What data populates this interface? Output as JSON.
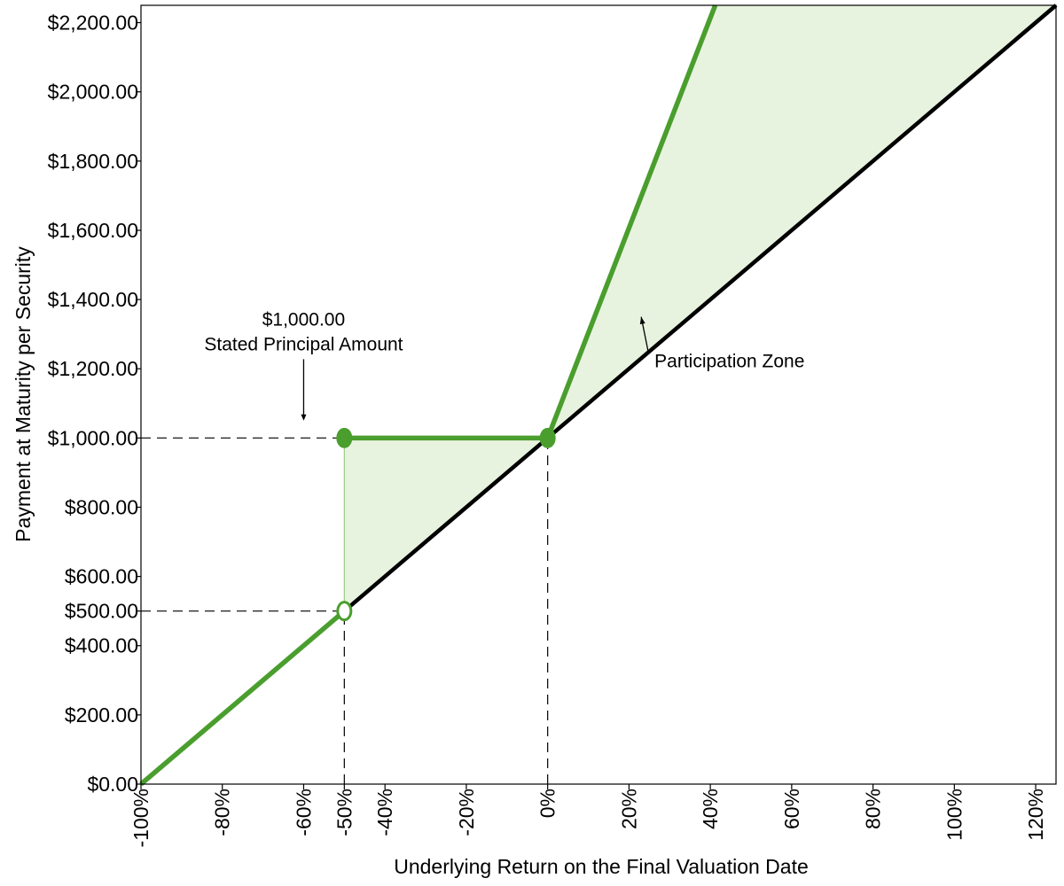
{
  "chart_data": {
    "type": "line",
    "xlabel": "Underlying Return on the Final Valuation Date",
    "ylabel": "Payment at Maturity per Security",
    "xlim": [
      -100,
      125
    ],
    "ylim": [
      0,
      2250
    ],
    "x_ticks": [
      {
        "value": -100,
        "label": "-100%"
      },
      {
        "value": -80,
        "label": "-80%"
      },
      {
        "value": -60,
        "label": "-60%"
      },
      {
        "value": -50,
        "label": "-50%"
      },
      {
        "value": -40,
        "label": "-40%"
      },
      {
        "value": -20,
        "label": "-20%"
      },
      {
        "value": 0,
        "label": "0%"
      },
      {
        "value": 20,
        "label": "20%"
      },
      {
        "value": 40,
        "label": "40%"
      },
      {
        "value": 60,
        "label": "60%"
      },
      {
        "value": 80,
        "label": "80%"
      },
      {
        "value": 100,
        "label": "100%"
      },
      {
        "value": 120,
        "label": "120%"
      }
    ],
    "y_ticks": [
      {
        "value": 0,
        "label": "$0.00"
      },
      {
        "value": 200,
        "label": "$200.00"
      },
      {
        "value": 400,
        "label": "$400.00"
      },
      {
        "value": 500,
        "label": "$500.00"
      },
      {
        "value": 600,
        "label": "$600.00"
      },
      {
        "value": 800,
        "label": "$800.00"
      },
      {
        "value": 1000,
        "label": "$1,000.00"
      },
      {
        "value": 1200,
        "label": "$1,200.00"
      },
      {
        "value": 1400,
        "label": "$1,400.00"
      },
      {
        "value": 1600,
        "label": "$1,600.00"
      },
      {
        "value": 1800,
        "label": "$1,800.00"
      },
      {
        "value": 2000,
        "label": "$2,000.00"
      },
      {
        "value": 2200,
        "label": "$2,200.00"
      }
    ],
    "series": [
      {
        "role": "underlying",
        "color": "#000000",
        "points": [
          [
            -100,
            0
          ],
          [
            125,
            2250
          ]
        ]
      },
      {
        "role": "payoff-lower",
        "color": "#4a9e2e",
        "points": [
          [
            -100,
            0
          ],
          [
            -50,
            500
          ]
        ]
      },
      {
        "role": "payoff-flat",
        "color": "#4a9e2e",
        "points": [
          [
            -50,
            1000
          ],
          [
            0,
            1000
          ]
        ]
      },
      {
        "role": "payoff-upper",
        "color": "#4a9e2e",
        "points": [
          [
            0,
            1000
          ],
          [
            41.2,
            2250
          ]
        ]
      }
    ],
    "markers": [
      {
        "x": -50,
        "y": 1000,
        "filled": true
      },
      {
        "x": 0,
        "y": 1000,
        "filled": true
      },
      {
        "x": -50,
        "y": 500,
        "filled": false
      }
    ],
    "shaded_regions": [
      {
        "color": "#e8f3df",
        "points": [
          [
            -50,
            500
          ],
          [
            -50,
            1000
          ],
          [
            0,
            1000
          ]
        ]
      },
      {
        "color": "#e8f3df",
        "points": [
          [
            0,
            1000
          ],
          [
            41.2,
            2250
          ],
          [
            125,
            2250
          ]
        ]
      }
    ],
    "reference_lines": [
      {
        "from": [
          -100,
          1000
        ],
        "to": [
          -50,
          1000
        ]
      },
      {
        "from": [
          -100,
          500
        ],
        "to": [
          -50,
          500
        ]
      },
      {
        "from": [
          -50,
          0
        ],
        "to": [
          -50,
          500
        ]
      },
      {
        "from": [
          0,
          0
        ],
        "to": [
          0,
          1000
        ]
      }
    ],
    "annotations": {
      "principal": {
        "line1": "$1,000.00",
        "line2": "Stated Principal Amount",
        "x": -60,
        "y": 1330,
        "arrow_to": [
          -60,
          1050
        ]
      },
      "participation": {
        "text": "Participation Zone",
        "x": 23,
        "y": 1230,
        "arrow_to": [
          23,
          1350
        ]
      }
    },
    "grid": false,
    "legend": "none"
  }
}
